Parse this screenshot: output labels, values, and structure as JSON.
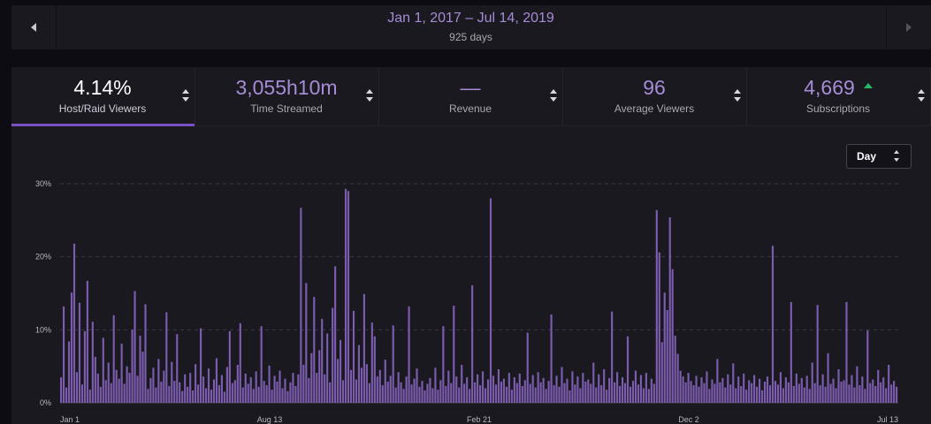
{
  "date_range": {
    "label": "Jan 1, 2017 – Jul 14, 2019",
    "days": "925 days",
    "prev_icon": "triangle-left-icon",
    "next_icon": "triangle-right-icon"
  },
  "tabs": [
    {
      "value": "4.14%",
      "label": "Host/Raid Viewers",
      "active": true
    },
    {
      "value": "3,055h10m",
      "label": "Time Streamed",
      "active": false
    },
    {
      "value": "—",
      "label": "Revenue",
      "active": false
    },
    {
      "value": "96",
      "label": "Average Viewers",
      "active": false
    },
    {
      "value": "4,669",
      "label": "Subscriptions",
      "active": false,
      "trend": "up"
    }
  ],
  "granularity": {
    "selected": "Day"
  },
  "colors": {
    "accent": "#7b50c6",
    "bar": "#7b5cae",
    "value": "#a68cd6",
    "trend_up": "#29b86a"
  },
  "chart_data": {
    "type": "bar",
    "title": "",
    "xlabel": "",
    "ylabel": "",
    "y_ticks": [
      "0%",
      "10%",
      "20%",
      "30%"
    ],
    "ylim": [
      0,
      30
    ],
    "x_ticks": [
      "Jan 1",
      "Aug 13",
      "Feb 21",
      "Dec 2",
      "Jul 13"
    ],
    "grid": true,
    "series": [
      {
        "values": [
          3.5,
          13.2,
          2.1,
          8.4,
          15.1,
          21.8,
          4.2,
          13.7,
          2.5,
          9.8,
          16.7,
          1.8,
          11.1,
          6.3,
          4.0,
          2.2,
          8.9,
          3.1,
          5.5,
          2.7,
          12.0,
          4.5,
          3.3,
          8.1,
          2.6,
          5.0,
          4.1,
          10.0,
          15.3,
          3.7,
          9.2,
          7.0,
          13.5,
          1.9,
          3.4,
          4.8,
          2.1,
          6.0,
          2.9,
          4.4,
          12.4,
          2.3,
          5.6,
          3.0,
          9.4,
          2.8,
          1.6,
          3.9,
          2.2,
          4.1,
          1.7,
          5.3,
          2.5,
          10.2,
          3.6,
          2.0,
          4.7,
          1.8,
          3.2,
          6.1,
          2.4,
          3.8,
          1.5,
          4.9,
          9.8,
          2.7,
          3.1,
          5.2,
          10.9,
          2.1,
          4.0,
          2.6,
          3.5,
          1.9,
          4.3,
          2.2,
          10.5,
          3.0,
          2.4,
          5.1,
          1.8,
          3.7,
          2.9,
          4.4,
          2.0,
          3.3,
          1.6,
          2.8,
          4.1,
          2.3,
          3.9,
          26.7,
          5.2,
          16.4,
          3.4,
          6.8,
          14.5,
          4.1,
          7.2,
          11.5,
          3.9,
          9.5,
          2.8,
          13.0,
          18.7,
          6.0,
          8.6,
          3.1,
          29.3,
          29.0,
          4.5,
          12.6,
          3.2,
          7.9,
          4.8,
          14.9,
          5.3,
          2.7,
          11.0,
          9.1,
          3.6,
          4.5,
          2.4,
          5.9,
          2.9,
          3.7,
          10.6,
          2.1,
          4.2,
          2.8,
          1.9,
          3.6,
          13.2,
          2.5,
          3.3,
          4.7,
          2.2,
          3.0,
          1.7,
          2.6,
          3.4,
          2.0,
          4.8,
          1.8,
          3.1,
          10.5,
          2.3,
          4.4,
          2.7,
          13.3,
          3.6,
          2.1,
          5.2,
          2.6,
          3.5,
          1.9,
          16.1,
          2.8,
          3.9,
          2.4,
          4.3,
          2.0,
          3.2,
          28.0,
          3.7,
          2.5,
          4.6,
          2.9,
          3.3,
          2.2,
          4.1,
          1.8,
          3.5,
          2.7,
          4.0,
          2.3,
          3.1,
          9.6,
          2.6,
          3.8,
          2.1,
          4.2,
          2.8,
          3.4,
          1.9,
          3.0,
          12.1,
          2.4,
          3.7,
          2.2,
          4.9,
          2.7,
          3.3,
          1.7,
          4.3,
          2.5,
          3.6,
          2.0,
          4.1,
          2.9,
          3.2,
          2.6,
          5.5,
          2.1,
          3.9,
          2.4,
          4.6,
          1.8,
          3.4,
          12.5,
          2.8,
          4.2,
          2.3,
          3.5,
          2.7,
          9.1,
          2.2,
          3.0,
          4.4,
          2.5,
          3.8,
          2.0,
          4.1,
          1.9,
          3.3,
          2.6,
          26.4,
          20.6,
          8.3,
          15.1,
          12.7,
          25.4,
          18.3,
          9.2,
          6.7,
          4.4,
          3.6,
          2.8,
          4.1,
          3.0,
          2.4,
          3.7,
          2.2,
          3.5,
          2.7,
          4.3,
          1.9,
          3.2,
          2.6,
          6.0,
          2.8,
          3.4,
          2.1,
          3.9,
          2.5,
          5.4,
          2.0,
          3.6,
          2.3,
          4.0,
          1.8,
          3.1,
          2.7,
          3.8,
          2.2,
          3.3,
          1.7,
          2.9,
          3.6,
          2.4,
          21.5,
          3.0,
          2.5,
          4.2,
          2.0,
          3.5,
          2.8,
          13.8,
          2.3,
          4.0,
          2.6,
          3.4,
          2.1,
          3.7,
          1.9,
          5.5,
          2.7,
          13.4,
          2.4,
          3.9,
          2.2,
          6.8,
          2.6,
          3.3,
          2.0,
          4.6,
          2.9,
          3.1,
          13.8,
          2.5,
          3.8,
          2.1,
          5.0,
          2.4,
          3.6,
          1.9,
          9.9,
          2.7,
          3.2,
          2.3,
          4.5,
          2.8,
          3.5,
          2.0,
          5.2,
          2.5,
          3.0,
          2.2
        ]
      }
    ]
  }
}
